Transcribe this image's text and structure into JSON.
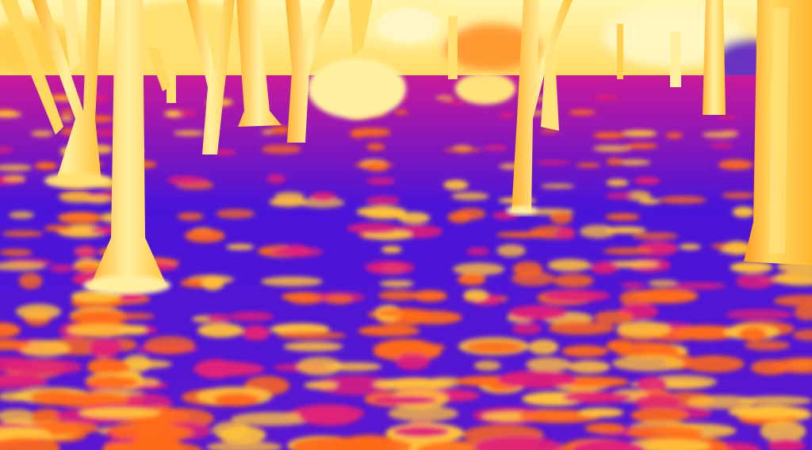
{
  "image": {
    "kind": "thermal-photo",
    "palette": {
      "cold": "#2a10d8",
      "cool": "#7a1ae0",
      "mid": "#e0207a",
      "warm": "#ff6a1a",
      "hot": "#ffc23a",
      "hottest": "#fff2a0"
    }
  }
}
